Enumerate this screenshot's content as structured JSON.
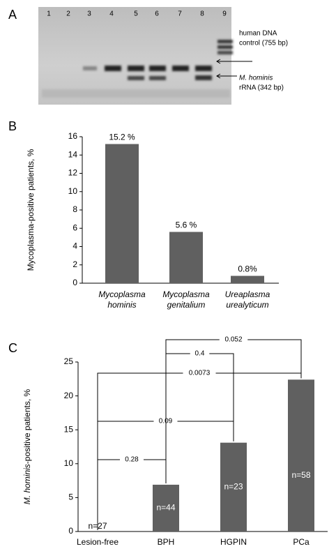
{
  "panel_labels": [
    "A",
    "B",
    "C"
  ],
  "gel": {
    "lanes": [
      "1",
      "2",
      "3",
      "4",
      "5",
      "6",
      "7",
      "8",
      "9"
    ],
    "control_label": [
      "human DNA",
      "control (755 bp)"
    ],
    "target_label": {
      "name": "M. hominis",
      "detail": "rRNA (342 bp)"
    }
  },
  "chart_data": [
    {
      "type": "bar",
      "y_label": "Mycoplasma-positive patients, %",
      "categories": [
        [
          "Mycoplasma",
          "hominis"
        ],
        [
          "Mycoplasma",
          "genitalium"
        ],
        [
          "Ureaplasma",
          "urealyticum"
        ]
      ],
      "values": [
        15.2,
        5.6,
        0.8
      ],
      "value_labels": [
        "15.2 %",
        "5.6 %",
        "0.8%"
      ],
      "color": "#606060",
      "ylim": [
        0,
        16
      ],
      "yticks": [
        0,
        2,
        4,
        6,
        8,
        10,
        12,
        14,
        16
      ]
    },
    {
      "type": "bar",
      "y_label": {
        "italic": "M. hominis",
        "text": "-positive  patients, %"
      },
      "categories": [
        "Lesion-free",
        "BPH",
        "HGPIN",
        "PCa"
      ],
      "values": [
        0,
        6.9,
        13.1,
        22.4
      ],
      "sample_sizes": [
        "n=27",
        "n=44",
        "n=23",
        "n=58"
      ],
      "color": "#606060",
      "ylim": [
        0,
        25
      ],
      "yticks": [
        0,
        5,
        10,
        15,
        20,
        25
      ],
      "comparisons": [
        {
          "groups": [
            "Lesion-free",
            "BPH"
          ],
          "p": 0.28
        },
        {
          "groups": [
            "Lesion-free",
            "HGPIN"
          ],
          "p": 0.09
        },
        {
          "groups": [
            "Lesion-free",
            "PCa"
          ],
          "p": 0.0073
        },
        {
          "groups": [
            "BPH",
            "HGPIN"
          ],
          "p": 0.4
        },
        {
          "groups": [
            "BPH",
            "PCa"
          ],
          "p": 0.052
        }
      ]
    }
  ]
}
